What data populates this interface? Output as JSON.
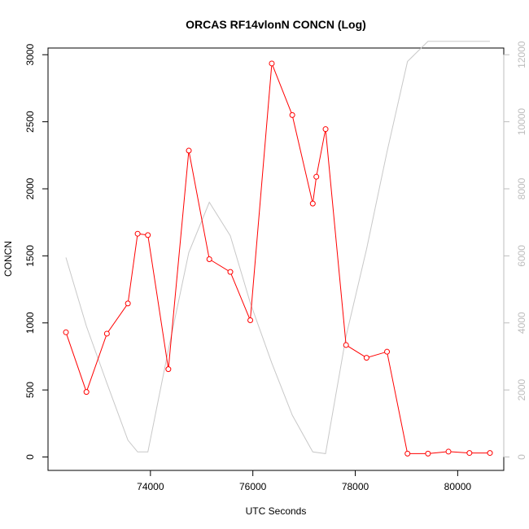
{
  "chart_data": {
    "type": "line",
    "title": "ORCAS RF14vlonN CONCN (Log)",
    "xlabel": "UTC Seconds",
    "ylabel": "CONCN",
    "xlim": [
      72000,
      80900
    ],
    "ylim": [
      -100,
      3050
    ],
    "y2lim": [
      -400,
      12200
    ],
    "x_ticks": [
      74000,
      76000,
      78000,
      80000
    ],
    "y_ticks": [
      0,
      500,
      1000,
      1500,
      2000,
      2500,
      3000
    ],
    "y2_ticks": [
      0,
      2000,
      4000,
      6000,
      8000,
      10000,
      12000
    ],
    "series": [
      {
        "axis": "left",
        "color": "#ff0000",
        "markers": true,
        "x": [
          72350,
          72750,
          73150,
          73560,
          73750,
          73950,
          74350,
          74750,
          75150,
          75560,
          75950,
          76370,
          76770,
          77170,
          77240,
          77420,
          77820,
          78220,
          78620,
          79020,
          79420,
          79820,
          80230,
          80630
        ],
        "values": [
          930,
          485,
          920,
          1145,
          1665,
          1655,
          655,
          2285,
          1475,
          1380,
          1020,
          2935,
          2550,
          1890,
          2090,
          2445,
          835,
          740,
          785,
          25,
          25,
          40,
          30,
          30
        ]
      },
      {
        "axis": "right",
        "color": "#c8c8c8",
        "markers": false,
        "x": [
          72350,
          72750,
          73150,
          73560,
          73750,
          73950,
          74350,
          74750,
          75150,
          75560,
          75950,
          76370,
          76770,
          77170,
          77420,
          77820,
          78220,
          78620,
          79020,
          79420,
          79820,
          80230,
          80630
        ],
        "values": [
          5950,
          3900,
          2200,
          500,
          150,
          150,
          3200,
          6100,
          7600,
          6600,
          4600,
          2800,
          1250,
          150,
          100,
          3600,
          6200,
          9100,
          11800,
          12400,
          12400,
          12400,
          12400
        ]
      }
    ]
  }
}
